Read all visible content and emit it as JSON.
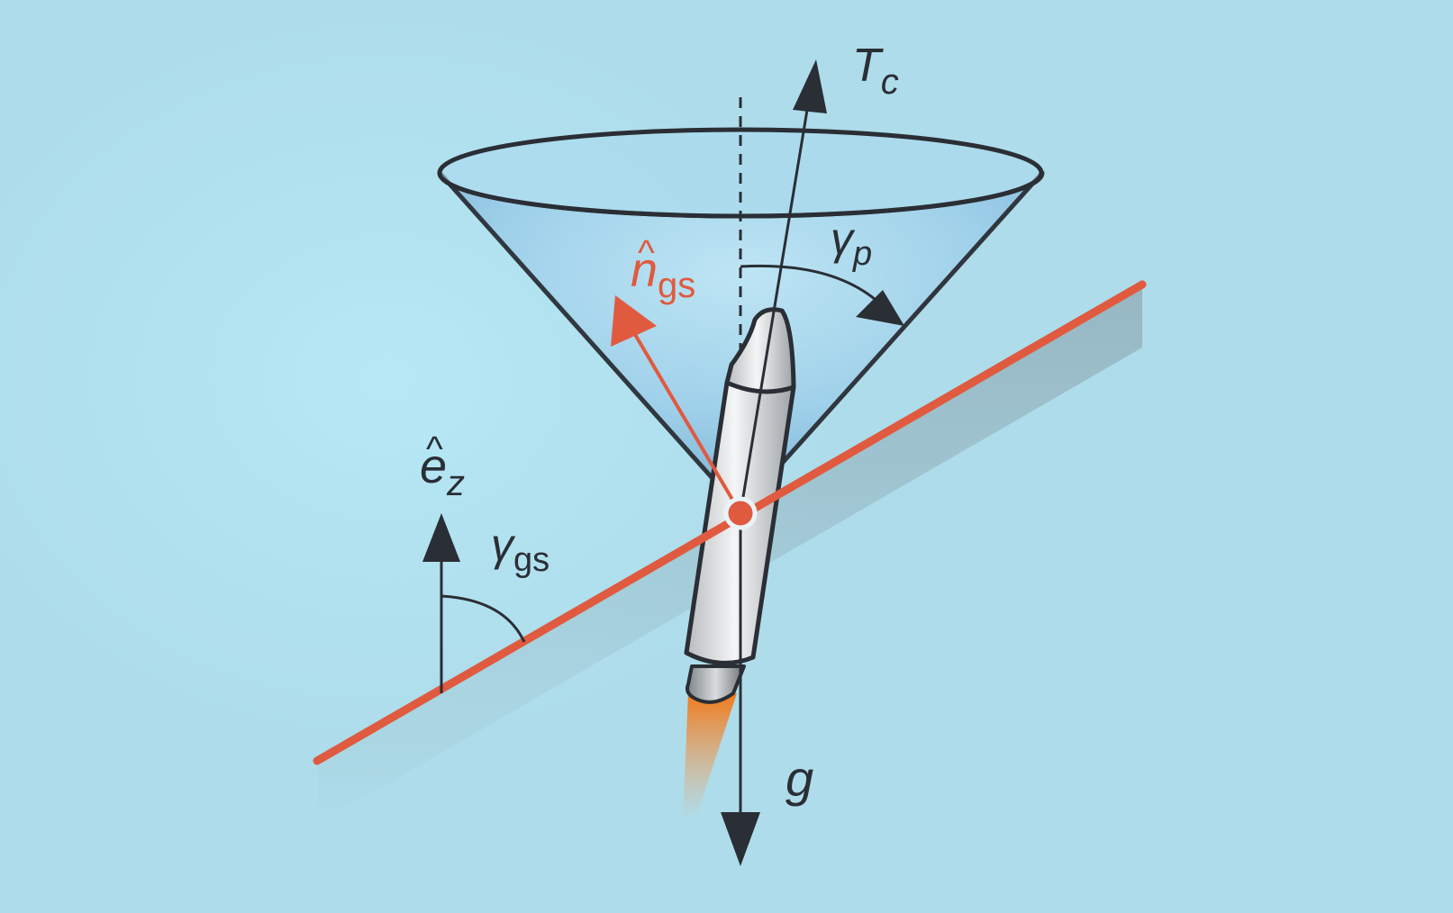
{
  "labels": {
    "thrust": {
      "main": "T",
      "sub": "c"
    },
    "pointing_angle": {
      "main": "γ",
      "sub": "p"
    },
    "glideslope_normal": {
      "hat": "^",
      "main": "n",
      "sub": "gs"
    },
    "vertical_unit": {
      "hat": "^",
      "main": "e",
      "sub": "z"
    },
    "glideslope_angle": {
      "main": "γ",
      "sub": "gs"
    },
    "gravity": {
      "main": "g"
    }
  },
  "colors": {
    "background": "#b0dfed",
    "ink": "#2a2e35",
    "accent": "#e05a3f",
    "cone_fill": "#8ec6e4",
    "flame": "#f08a2c"
  }
}
